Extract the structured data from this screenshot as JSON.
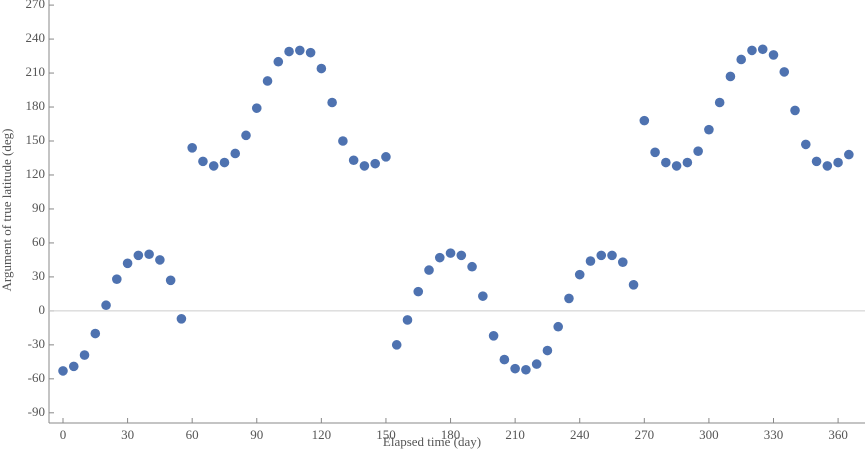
{
  "chart_data": {
    "type": "scatter",
    "x_label": "Elapsed time (day)",
    "y_label": "Argument of true latitude (deg)",
    "color": "#4e72b0",
    "xlim": [
      -6.5,
      372.5
    ],
    "ylim": [
      -99,
      274.5
    ],
    "xticks": [
      0,
      30,
      60,
      90,
      120,
      150,
      180,
      210,
      240,
      270,
      300,
      330,
      360
    ],
    "yticks": [
      -90,
      -60,
      -30,
      0,
      30,
      60,
      90,
      120,
      150,
      180,
      210,
      240,
      270
    ],
    "zero_line": true,
    "x": [
      0,
      5,
      10,
      15,
      20,
      25,
      30,
      35,
      40,
      45,
      50,
      55,
      60,
      65,
      70,
      75,
      80,
      85,
      90,
      95,
      100,
      105,
      110,
      115,
      120,
      125,
      130,
      135,
      140,
      145,
      150,
      155,
      160,
      165,
      170,
      175,
      180,
      185,
      190,
      195,
      200,
      205,
      210,
      215,
      220,
      225,
      230,
      235,
      240,
      245,
      250,
      255,
      260,
      265,
      270,
      275,
      280,
      285,
      290,
      295,
      300,
      305,
      310,
      315,
      320,
      325,
      330,
      335,
      340,
      345,
      350,
      355,
      360,
      365
    ],
    "values": [
      -53,
      -49,
      -39,
      -20,
      5,
      28,
      42,
      49,
      50,
      45,
      27,
      -7,
      144,
      132,
      128,
      131,
      139,
      155,
      179,
      203,
      220,
      229,
      230,
      228,
      214,
      184,
      150,
      133,
      128,
      130,
      136,
      -30,
      -8,
      17,
      36,
      47,
      51,
      49,
      39,
      13,
      -22,
      -43,
      -51,
      -52,
      -47,
      -35,
      -14,
      11,
      32,
      44,
      49,
      49,
      43,
      23,
      168,
      140,
      131,
      128,
      131,
      141,
      160,
      184,
      207,
      222,
      230,
      231,
      226,
      211,
      177,
      147,
      132,
      128,
      131,
      138
    ]
  }
}
